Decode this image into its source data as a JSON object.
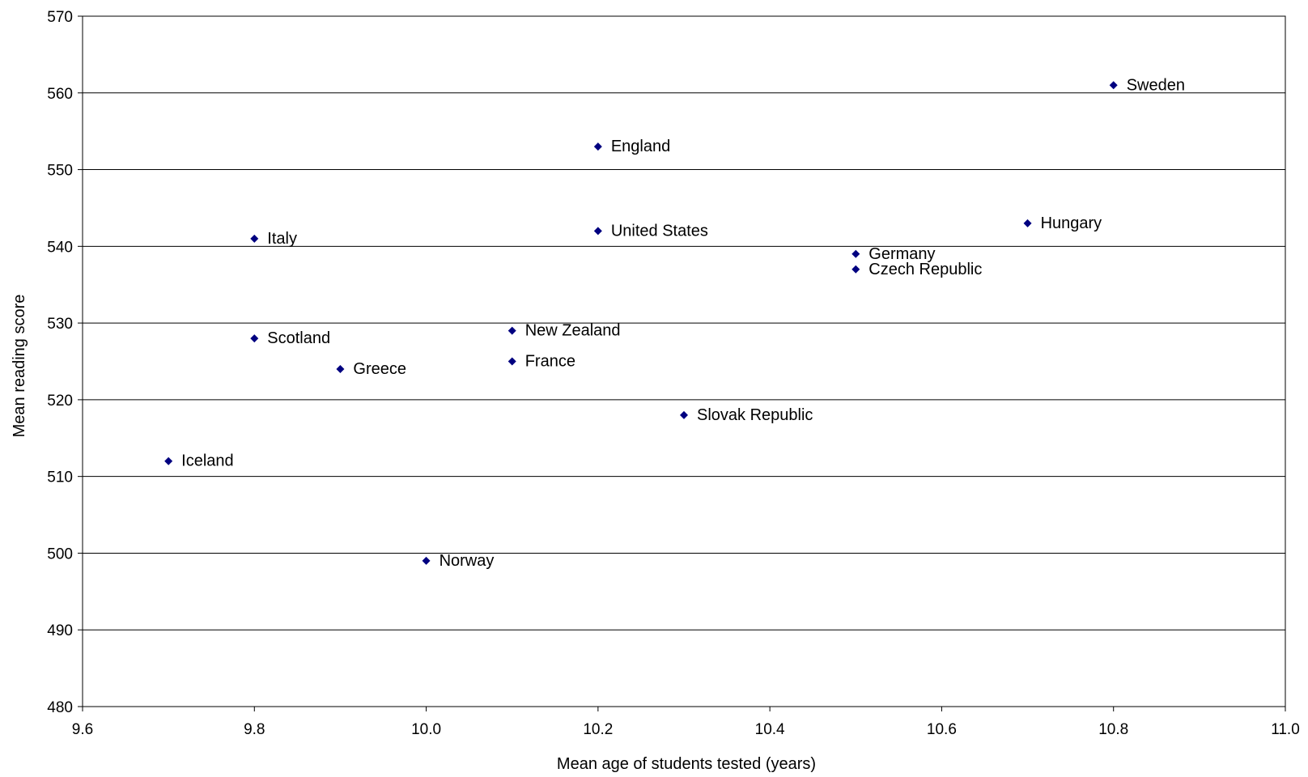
{
  "chart_data": {
    "type": "scatter",
    "xlabel": "Mean age of students tested (years)",
    "ylabel": "Mean reading score",
    "xlim": [
      9.6,
      11.0
    ],
    "ylim": [
      480,
      570
    ],
    "x_ticks": [
      "9.6",
      "9.8",
      "10.0",
      "10.2",
      "10.4",
      "10.6",
      "10.8",
      "11.0"
    ],
    "y_ticks": [
      "480",
      "490",
      "500",
      "510",
      "520",
      "530",
      "540",
      "550",
      "560",
      "570"
    ],
    "grid": "horizontal",
    "marker_color": "#000080",
    "points": [
      {
        "label": "Sweden",
        "x": 10.8,
        "y": 561
      },
      {
        "label": "England",
        "x": 10.2,
        "y": 553
      },
      {
        "label": "Hungary",
        "x": 10.7,
        "y": 543
      },
      {
        "label": "United States",
        "x": 10.2,
        "y": 542
      },
      {
        "label": "Italy",
        "x": 9.8,
        "y": 541
      },
      {
        "label": "Germany",
        "x": 10.5,
        "y": 539
      },
      {
        "label": "Czech Republic",
        "x": 10.5,
        "y": 537
      },
      {
        "label": "New Zealand",
        "x": 10.1,
        "y": 529
      },
      {
        "label": "Scotland",
        "x": 9.8,
        "y": 528
      },
      {
        "label": "France",
        "x": 10.1,
        "y": 525
      },
      {
        "label": "Greece",
        "x": 9.9,
        "y": 524
      },
      {
        "label": "Slovak Republic",
        "x": 10.3,
        "y": 518
      },
      {
        "label": "Iceland",
        "x": 9.7,
        "y": 512
      },
      {
        "label": "Norway",
        "x": 10.0,
        "y": 499
      }
    ]
  }
}
